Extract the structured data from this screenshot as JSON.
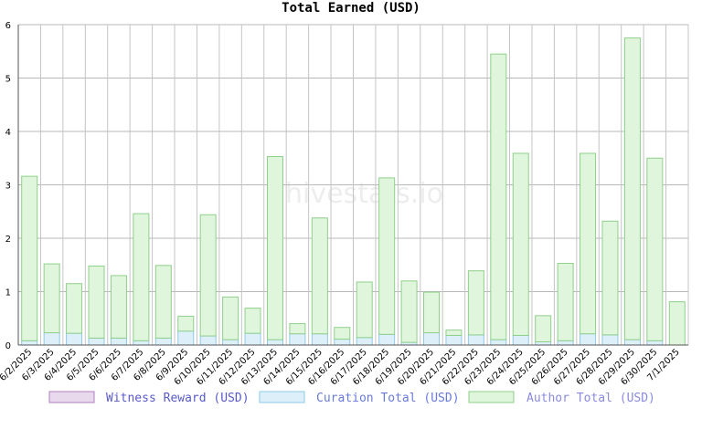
{
  "chart_data": {
    "type": "bar",
    "stacked": true,
    "title": "Total Earned (USD)",
    "watermark": "hivestats.io",
    "xlabel": "",
    "ylabel": "",
    "ylim": [
      0,
      6
    ],
    "yticks": [
      0,
      1,
      2,
      3,
      4,
      5,
      6
    ],
    "grid": true,
    "legend_position": "bottom",
    "categories": [
      "6/2/2025",
      "6/3/2025",
      "6/4/2025",
      "6/5/2025",
      "6/6/2025",
      "6/7/2025",
      "6/8/2025",
      "6/9/2025",
      "6/10/2025",
      "6/11/2025",
      "6/12/2025",
      "6/13/2025",
      "6/14/2025",
      "6/15/2025",
      "6/16/2025",
      "6/17/2025",
      "6/18/2025",
      "6/19/2025",
      "6/20/2025",
      "6/21/2025",
      "6/22/2025",
      "6/23/2025",
      "6/24/2025",
      "6/25/2025",
      "6/26/2025",
      "6/27/2025",
      "6/28/2025",
      "6/29/2025",
      "6/30/2025",
      "7/1/2025"
    ],
    "series": [
      {
        "name": "Witness Reward (USD)",
        "fill": "#e8d9ec",
        "stroke": "#b07cc0",
        "values": [
          0,
          0,
          0,
          0,
          0,
          0,
          0,
          0,
          0,
          0,
          0,
          0,
          0,
          0,
          0,
          0,
          0,
          0,
          0,
          0,
          0,
          0,
          0,
          0,
          0,
          0,
          0,
          0,
          0,
          0
        ]
      },
      {
        "name": "Curation Total (USD)",
        "fill": "#ddf0fa",
        "stroke": "#8fc8e8",
        "values": [
          0.08,
          0.23,
          0.22,
          0.13,
          0.13,
          0.08,
          0.13,
          0.26,
          0.17,
          0.1,
          0.22,
          0.1,
          0.21,
          0.21,
          0.11,
          0.14,
          0.2,
          0.05,
          0.23,
          0.18,
          0.19,
          0.1,
          0.18,
          0.06,
          0.08,
          0.21,
          0.19,
          0.1,
          0.08,
          0.0
        ]
      },
      {
        "name": "Author Total (USD)",
        "fill": "#dff5dc",
        "stroke": "#8fd08a",
        "values": [
          3.08,
          1.29,
          0.93,
          1.35,
          1.17,
          2.38,
          1.36,
          0.28,
          2.27,
          0.8,
          0.47,
          3.43,
          0.19,
          2.17,
          0.22,
          1.04,
          2.93,
          1.15,
          0.76,
          0.1,
          1.2,
          5.35,
          3.41,
          0.49,
          1.45,
          3.38,
          2.13,
          5.65,
          3.42,
          0.81
        ]
      }
    ]
  }
}
